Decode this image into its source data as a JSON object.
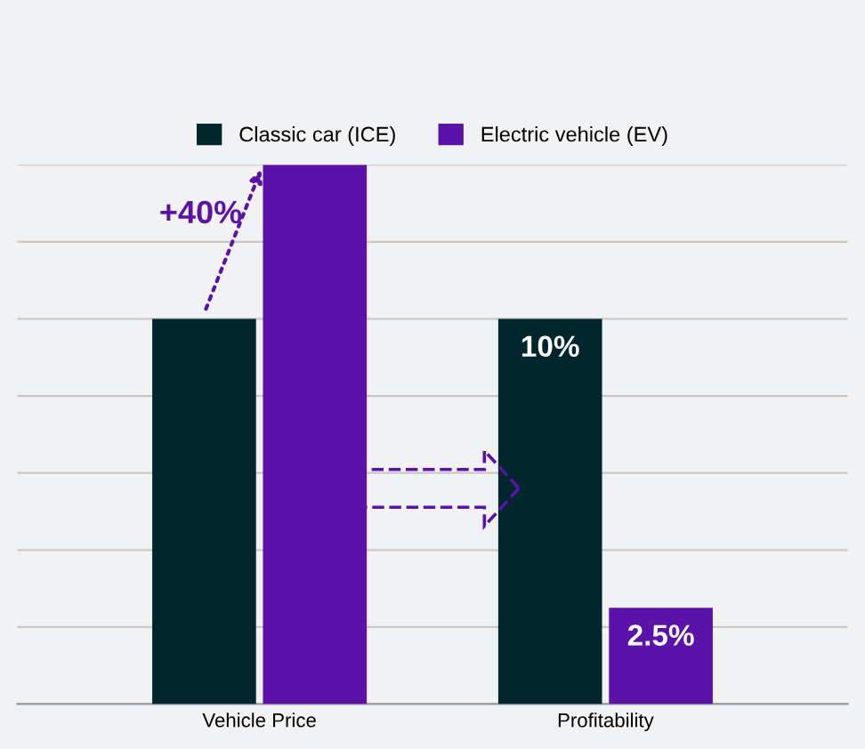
{
  "chart_data": {
    "type": "bar",
    "categories": [
      "Vehicle Price",
      "Profitability"
    ],
    "series": [
      {
        "name": "Classic car (ICE)",
        "color": "#01262e",
        "values": [
          10,
          10
        ],
        "value_labels": [
          null,
          "10%"
        ]
      },
      {
        "name": "Electric vehicle (EV)",
        "color": "#5b12a8",
        "values": [
          14,
          2.5
        ],
        "value_labels": [
          null,
          "2.5%"
        ]
      }
    ],
    "ylim": [
      0,
      14
    ],
    "yticks": [
      {
        "value": 0,
        "label": null
      },
      {
        "value": 2,
        "label": null
      },
      {
        "value": 4,
        "label": null
      },
      {
        "value": 6,
        "label": null
      },
      {
        "value": 8,
        "label": null
      },
      {
        "value": 10,
        "label": null
      },
      {
        "value": 12,
        "label": null
      },
      {
        "value": 14,
        "label": null
      }
    ],
    "annotations": [
      {
        "text": "+40%",
        "x": "Vehicle Price",
        "y": 14
      }
    ],
    "grid": "y",
    "legend": "top"
  }
}
